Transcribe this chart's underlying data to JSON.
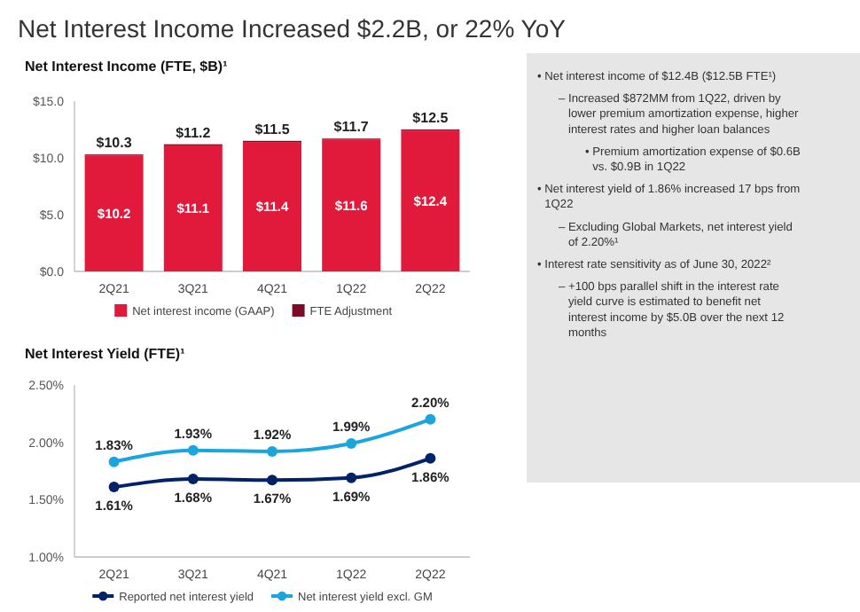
{
  "chart_data": [
    {
      "type": "bar",
      "title": "Net Interest Income Increased $2.2B, or 22% YoY",
      "subtitle": "Net Interest Income (FTE, $B)¹",
      "categories": [
        "2Q21",
        "3Q21",
        "4Q21",
        "1Q22",
        "2Q22"
      ],
      "stacked": true,
      "series": [
        {
          "name": "Net interest income (GAAP)",
          "color": "#e1193a",
          "values": [
            10.2,
            11.1,
            11.4,
            11.6,
            12.4
          ],
          "value_labels": [
            "$10.2",
            "$11.1",
            "$11.4",
            "$11.6",
            "$12.4"
          ]
        },
        {
          "name": "FTE Adjustment",
          "color": "#7d0b28",
          "values": [
            0.1,
            0.1,
            0.1,
            0.1,
            0.1
          ]
        }
      ],
      "totals": [
        "$10.3",
        "$11.2",
        "$11.5",
        "$11.7",
        "$12.5"
      ],
      "ylim": [
        0,
        15
      ],
      "yticks": [
        {
          "value": 0,
          "label": "$0.0"
        },
        {
          "value": 5,
          "label": "$5.0"
        },
        {
          "value": 10,
          "label": "$10.0"
        },
        {
          "value": 15,
          "label": "$15.0"
        }
      ],
      "legend": "bottom"
    },
    {
      "type": "line",
      "title": "Net Interest Yield (FTE)¹",
      "categories": [
        "2Q21",
        "3Q21",
        "4Q21",
        "1Q22",
        "2Q22"
      ],
      "series": [
        {
          "name": "Reported net interest yield",
          "color": "#012169",
          "values": [
            1.61,
            1.68,
            1.67,
            1.69,
            1.86
          ],
          "value_labels": [
            "1.61%",
            "1.68%",
            "1.67%",
            "1.69%",
            "1.86%"
          ]
        },
        {
          "name": "Net interest yield excl. GM",
          "color": "#1ba5de",
          "values": [
            1.83,
            1.93,
            1.92,
            1.99,
            2.2
          ],
          "value_labels": [
            "1.83%",
            "1.93%",
            "1.92%",
            "1.99%",
            "2.20%"
          ]
        }
      ],
      "ylim": [
        1,
        2.5
      ],
      "yticks": [
        {
          "value": 1,
          "label": "1.00%"
        },
        {
          "value": 1.5,
          "label": "1.50%"
        },
        {
          "value": 2,
          "label": "2.00%"
        },
        {
          "value": 2.5,
          "label": "2.50%"
        }
      ],
      "marker": "circle",
      "legend": "bottom"
    },
    {
      "type": "other",
      "annotations": [
        "• Net interest income of $12.4B ($12.5B FTE¹)",
        "– Increased $872MM from 1Q22, driven by lower premium amortization expense, higher interest rates and higher loan balances",
        "• Premium amortization expense of $0.6B vs. $0.9B in 1Q22",
        "• Net interest yield of 1.86% increased 17 bps from 1Q22",
        "– Excluding Global Markets, net interest yield of 2.20%¹",
        "• Interest rate sensitivity as of June 30, 2022²",
        "– +100 bps parallel shift in the interest rate yield curve is estimated to benefit net interest income by $5.0B over the next 12 months"
      ]
    }
  ]
}
